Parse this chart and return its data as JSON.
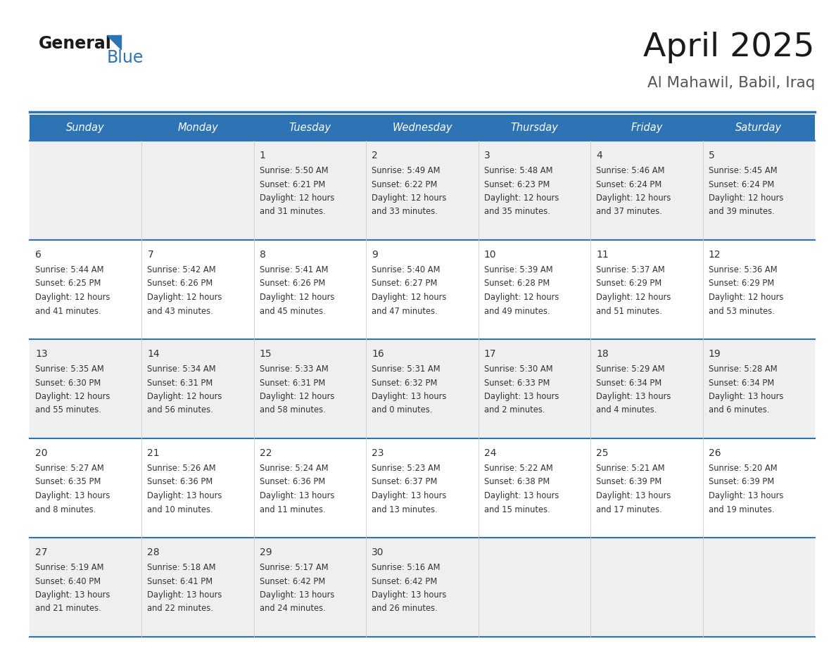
{
  "title": "April 2025",
  "subtitle": "Al Mahawil, Babil, Iraq",
  "days_of_week": [
    "Sunday",
    "Monday",
    "Tuesday",
    "Wednesday",
    "Thursday",
    "Friday",
    "Saturday"
  ],
  "header_bg": "#2E74B5",
  "header_text_color": "#FFFFFF",
  "row_bg_odd": "#EFEFEF",
  "row_bg_even": "#FFFFFF",
  "cell_text_color": "#333333",
  "divider_color": "#2E74B5",
  "logo_color": "#2E74B5",
  "calendar_data": [
    [
      {
        "day": null,
        "sunrise": null,
        "sunset": null,
        "daylight_h": null,
        "daylight_m": null
      },
      {
        "day": null,
        "sunrise": null,
        "sunset": null,
        "daylight_h": null,
        "daylight_m": null
      },
      {
        "day": 1,
        "sunrise": "5:50 AM",
        "sunset": "6:21 PM",
        "daylight_h": "12 hours",
        "daylight_m": "and 31 minutes."
      },
      {
        "day": 2,
        "sunrise": "5:49 AM",
        "sunset": "6:22 PM",
        "daylight_h": "12 hours",
        "daylight_m": "and 33 minutes."
      },
      {
        "day": 3,
        "sunrise": "5:48 AM",
        "sunset": "6:23 PM",
        "daylight_h": "12 hours",
        "daylight_m": "and 35 minutes."
      },
      {
        "day": 4,
        "sunrise": "5:46 AM",
        "sunset": "6:24 PM",
        "daylight_h": "12 hours",
        "daylight_m": "and 37 minutes."
      },
      {
        "day": 5,
        "sunrise": "5:45 AM",
        "sunset": "6:24 PM",
        "daylight_h": "12 hours",
        "daylight_m": "and 39 minutes."
      }
    ],
    [
      {
        "day": 6,
        "sunrise": "5:44 AM",
        "sunset": "6:25 PM",
        "daylight_h": "12 hours",
        "daylight_m": "and 41 minutes."
      },
      {
        "day": 7,
        "sunrise": "5:42 AM",
        "sunset": "6:26 PM",
        "daylight_h": "12 hours",
        "daylight_m": "and 43 minutes."
      },
      {
        "day": 8,
        "sunrise": "5:41 AM",
        "sunset": "6:26 PM",
        "daylight_h": "12 hours",
        "daylight_m": "and 45 minutes."
      },
      {
        "day": 9,
        "sunrise": "5:40 AM",
        "sunset": "6:27 PM",
        "daylight_h": "12 hours",
        "daylight_m": "and 47 minutes."
      },
      {
        "day": 10,
        "sunrise": "5:39 AM",
        "sunset": "6:28 PM",
        "daylight_h": "12 hours",
        "daylight_m": "and 49 minutes."
      },
      {
        "day": 11,
        "sunrise": "5:37 AM",
        "sunset": "6:29 PM",
        "daylight_h": "12 hours",
        "daylight_m": "and 51 minutes."
      },
      {
        "day": 12,
        "sunrise": "5:36 AM",
        "sunset": "6:29 PM",
        "daylight_h": "12 hours",
        "daylight_m": "and 53 minutes."
      }
    ],
    [
      {
        "day": 13,
        "sunrise": "5:35 AM",
        "sunset": "6:30 PM",
        "daylight_h": "12 hours",
        "daylight_m": "and 55 minutes."
      },
      {
        "day": 14,
        "sunrise": "5:34 AM",
        "sunset": "6:31 PM",
        "daylight_h": "12 hours",
        "daylight_m": "and 56 minutes."
      },
      {
        "day": 15,
        "sunrise": "5:33 AM",
        "sunset": "6:31 PM",
        "daylight_h": "12 hours",
        "daylight_m": "and 58 minutes."
      },
      {
        "day": 16,
        "sunrise": "5:31 AM",
        "sunset": "6:32 PM",
        "daylight_h": "13 hours",
        "daylight_m": "and 0 minutes."
      },
      {
        "day": 17,
        "sunrise": "5:30 AM",
        "sunset": "6:33 PM",
        "daylight_h": "13 hours",
        "daylight_m": "and 2 minutes."
      },
      {
        "day": 18,
        "sunrise": "5:29 AM",
        "sunset": "6:34 PM",
        "daylight_h": "13 hours",
        "daylight_m": "and 4 minutes."
      },
      {
        "day": 19,
        "sunrise": "5:28 AM",
        "sunset": "6:34 PM",
        "daylight_h": "13 hours",
        "daylight_m": "and 6 minutes."
      }
    ],
    [
      {
        "day": 20,
        "sunrise": "5:27 AM",
        "sunset": "6:35 PM",
        "daylight_h": "13 hours",
        "daylight_m": "and 8 minutes."
      },
      {
        "day": 21,
        "sunrise": "5:26 AM",
        "sunset": "6:36 PM",
        "daylight_h": "13 hours",
        "daylight_m": "and 10 minutes."
      },
      {
        "day": 22,
        "sunrise": "5:24 AM",
        "sunset": "6:36 PM",
        "daylight_h": "13 hours",
        "daylight_m": "and 11 minutes."
      },
      {
        "day": 23,
        "sunrise": "5:23 AM",
        "sunset": "6:37 PM",
        "daylight_h": "13 hours",
        "daylight_m": "and 13 minutes."
      },
      {
        "day": 24,
        "sunrise": "5:22 AM",
        "sunset": "6:38 PM",
        "daylight_h": "13 hours",
        "daylight_m": "and 15 minutes."
      },
      {
        "day": 25,
        "sunrise": "5:21 AM",
        "sunset": "6:39 PM",
        "daylight_h": "13 hours",
        "daylight_m": "and 17 minutes."
      },
      {
        "day": 26,
        "sunrise": "5:20 AM",
        "sunset": "6:39 PM",
        "daylight_h": "13 hours",
        "daylight_m": "and 19 minutes."
      }
    ],
    [
      {
        "day": 27,
        "sunrise": "5:19 AM",
        "sunset": "6:40 PM",
        "daylight_h": "13 hours",
        "daylight_m": "and 21 minutes."
      },
      {
        "day": 28,
        "sunrise": "5:18 AM",
        "sunset": "6:41 PM",
        "daylight_h": "13 hours",
        "daylight_m": "and 22 minutes."
      },
      {
        "day": 29,
        "sunrise": "5:17 AM",
        "sunset": "6:42 PM",
        "daylight_h": "13 hours",
        "daylight_m": "and 24 minutes."
      },
      {
        "day": 30,
        "sunrise": "5:16 AM",
        "sunset": "6:42 PM",
        "daylight_h": "13 hours",
        "daylight_m": "and 26 minutes."
      },
      {
        "day": null,
        "sunrise": null,
        "sunset": null,
        "daylight_h": null,
        "daylight_m": null
      },
      {
        "day": null,
        "sunrise": null,
        "sunset": null,
        "daylight_h": null,
        "daylight_m": null
      },
      {
        "day": null,
        "sunrise": null,
        "sunset": null,
        "daylight_h": null,
        "daylight_m": null
      }
    ]
  ]
}
